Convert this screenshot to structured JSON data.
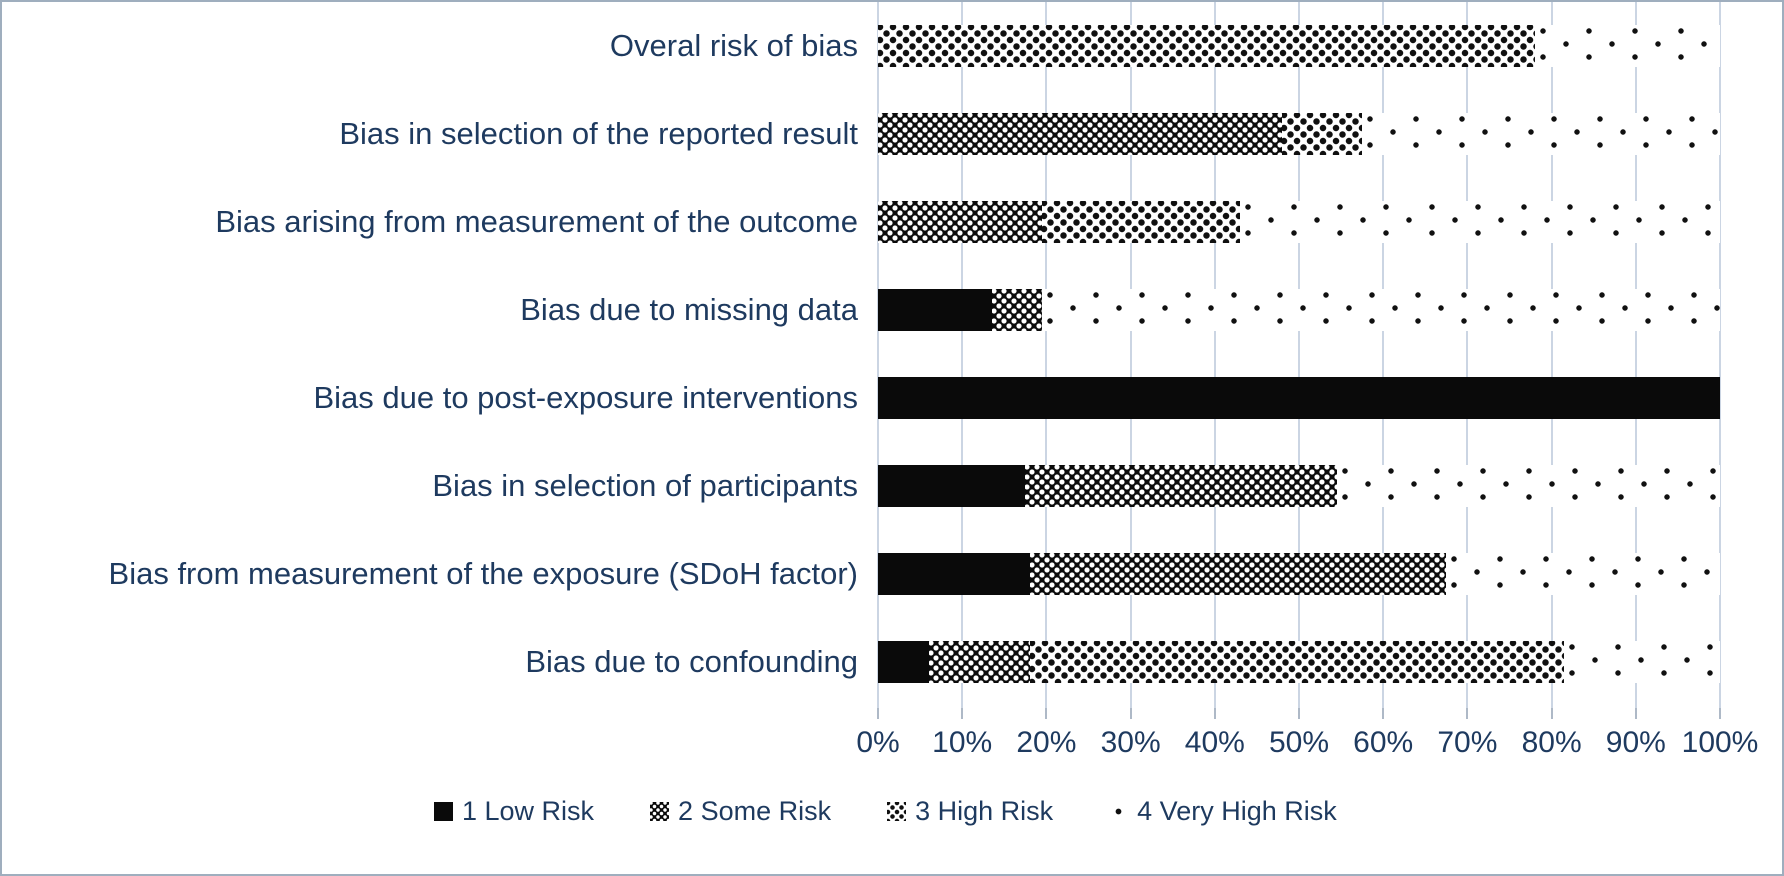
{
  "chart_data": {
    "type": "bar",
    "orientation": "horizontal",
    "stacked": true,
    "title": "",
    "xlabel": "",
    "ylabel": "",
    "xlim": [
      0,
      100
    ],
    "grid": true,
    "legend_position": "bottom",
    "x_ticks": [
      "0%",
      "10%",
      "20%",
      "30%",
      "40%",
      "50%",
      "60%",
      "70%",
      "80%",
      "90%",
      "100%"
    ],
    "categories": [
      "Overal risk of bias",
      "Bias in selection of the reported result",
      "Bias arising from measurement of the outcome",
      "Bias due to missing data",
      "Bias due to post-exposure interventions",
      "Bias in selection of participants",
      "Bias from measurement of the exposure (SDoH factor)",
      "Bias due to confounding"
    ],
    "series": [
      {
        "name": "1 Low Risk",
        "pattern": "low",
        "values": [
          0,
          0,
          0,
          13.5,
          100,
          17.5,
          18,
          6
        ]
      },
      {
        "name": "2 Some Risk",
        "pattern": "some",
        "values": [
          0,
          48,
          19.5,
          6,
          0,
          37,
          49.5,
          12
        ]
      },
      {
        "name": "3 High Risk",
        "pattern": "high",
        "values": [
          78,
          9.5,
          23.5,
          0,
          0,
          0,
          0,
          63.5
        ]
      },
      {
        "name": "4 Very High Risk",
        "pattern": "veryhigh",
        "values": [
          22,
          42.5,
          57,
          80.5,
          0,
          45.5,
          32.5,
          18.5
        ]
      }
    ]
  },
  "legend": {
    "items": [
      {
        "label": "1 Low Risk",
        "swatch": "low"
      },
      {
        "label": "2 Some Risk",
        "swatch": "some"
      },
      {
        "label": "3 High Risk",
        "swatch": "high"
      },
      {
        "label": "4 Very High Risk",
        "swatch": "veryhigh"
      }
    ]
  },
  "colors": {
    "text": "#1E3A5F",
    "gridline": "#CBD5E3",
    "tick": "#AEB9C7",
    "bar_fill": "#0A0A0A",
    "background": "#FFFFFF",
    "frame_border": "#9FAEBE"
  }
}
